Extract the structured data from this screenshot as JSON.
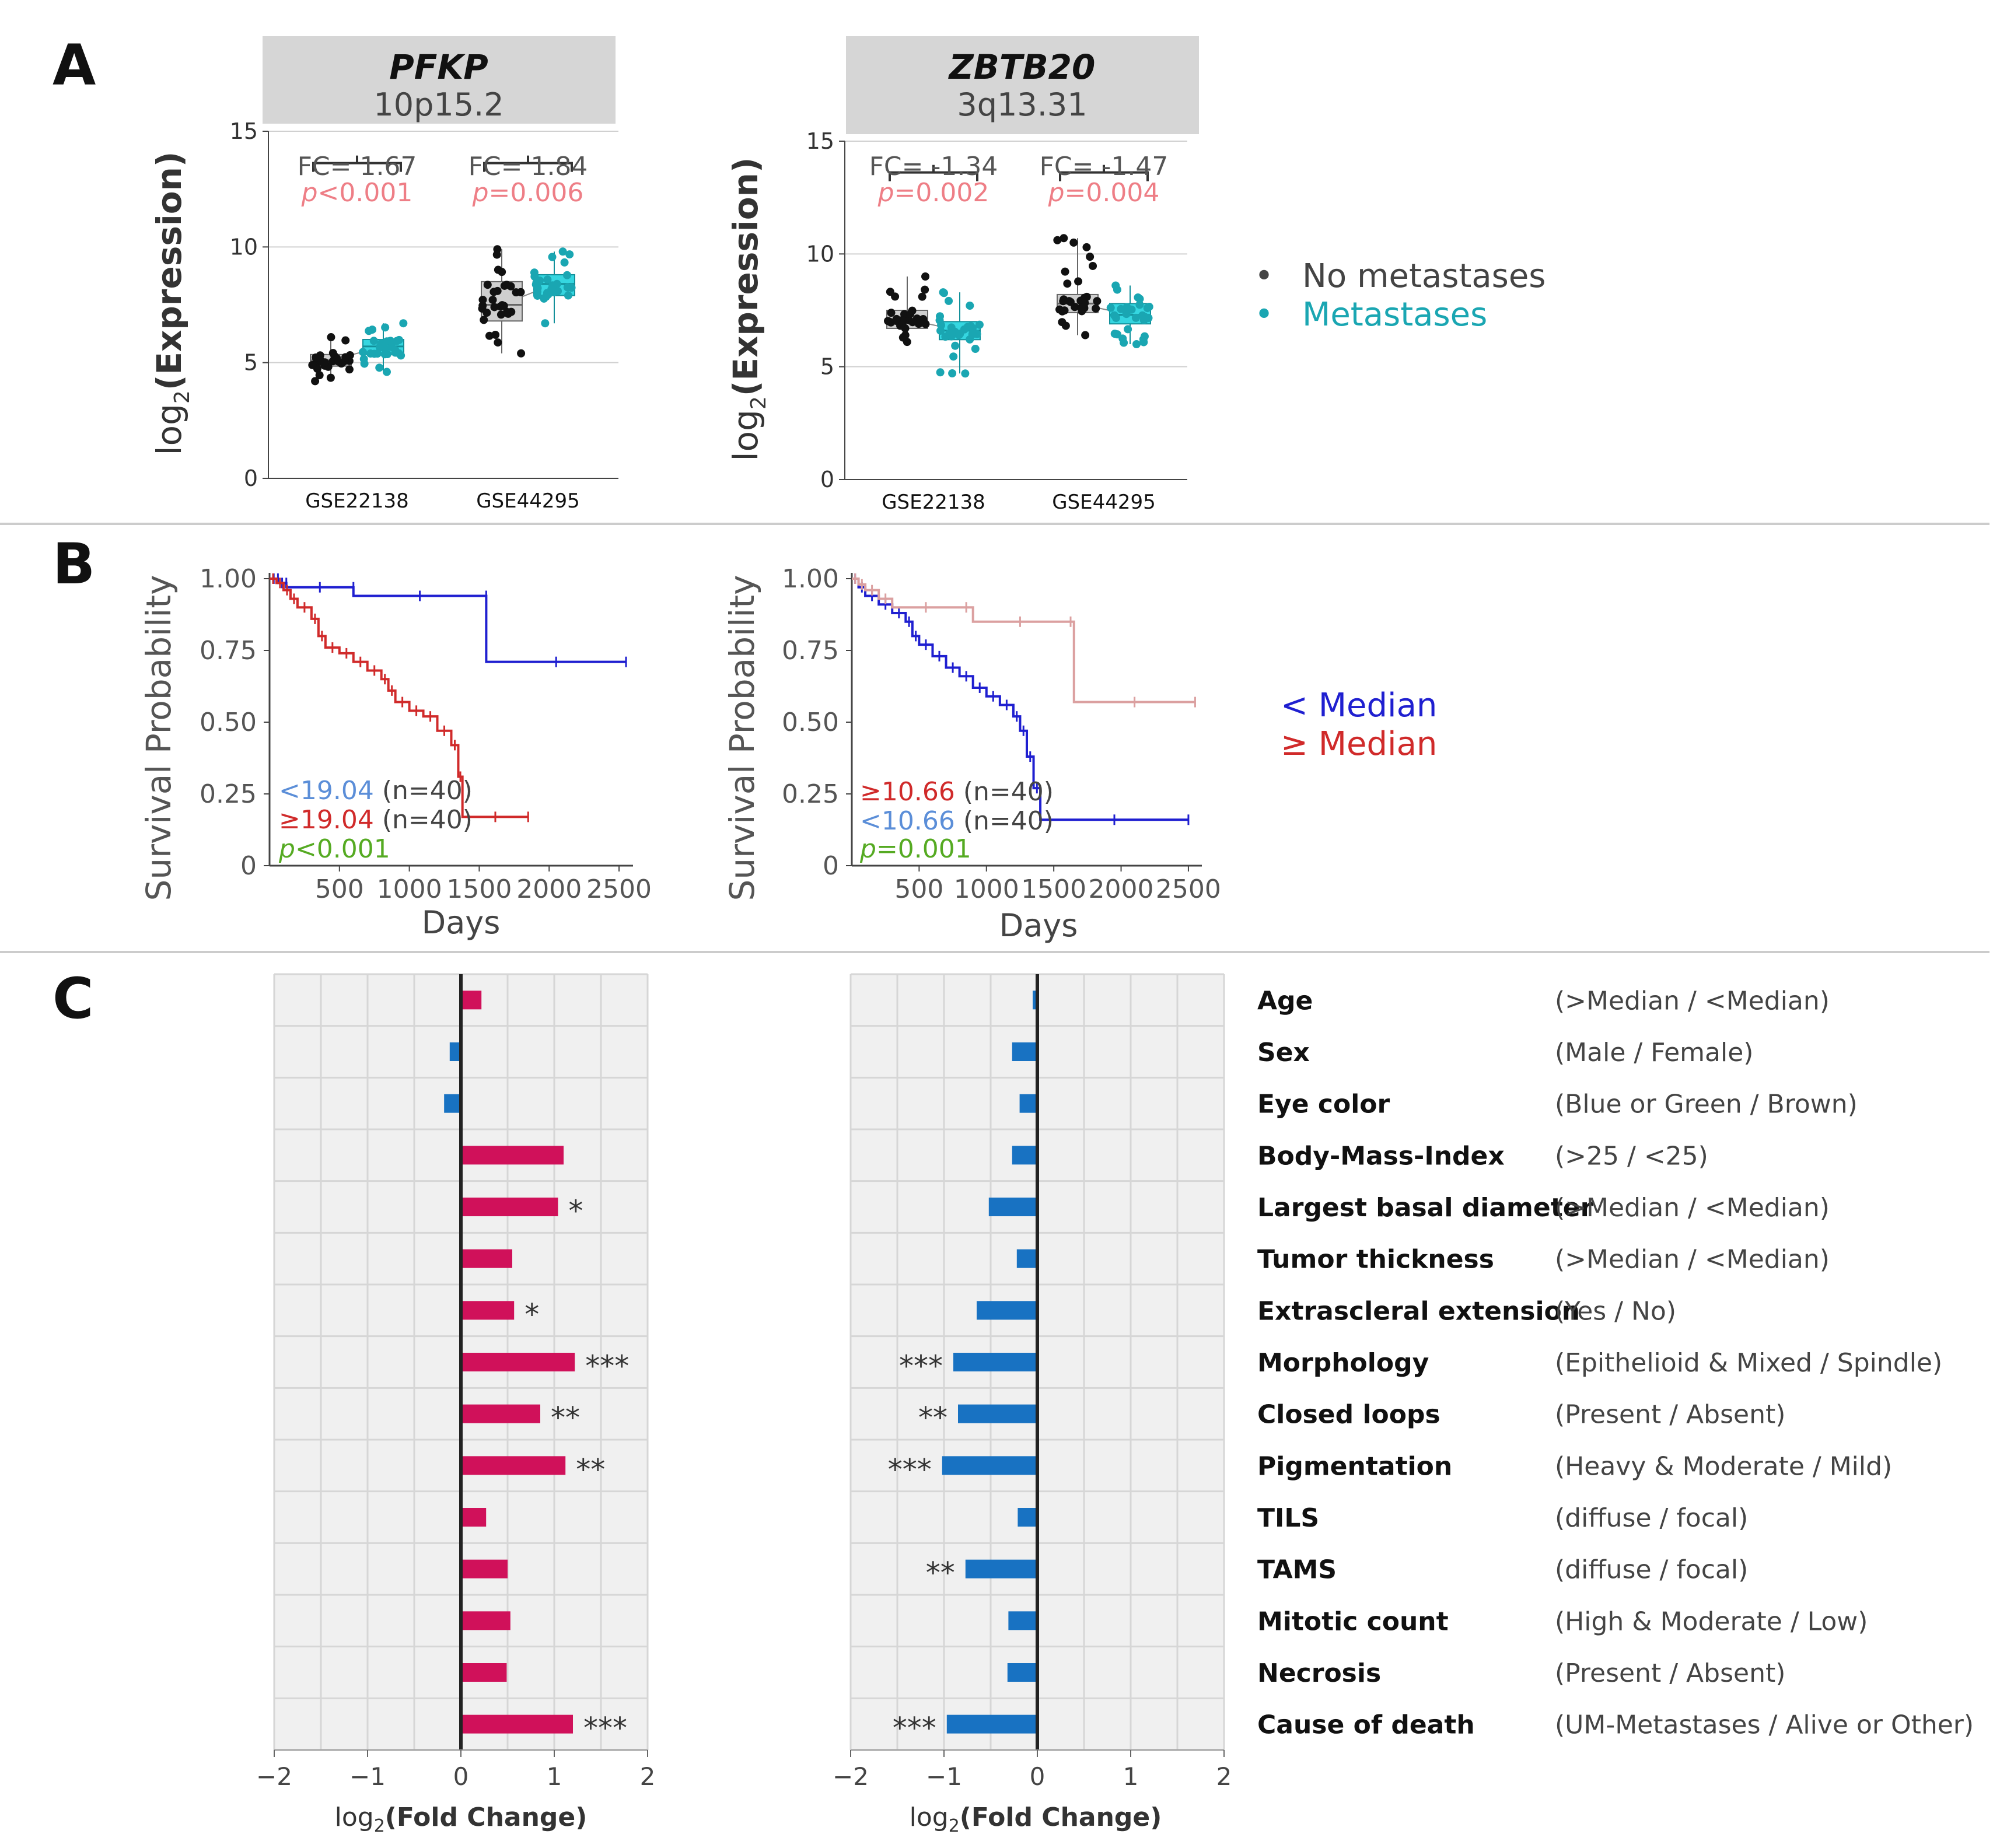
{
  "figure": {
    "panels": [
      "A",
      "B",
      "C"
    ],
    "colors": {
      "no_metastases": "#111111",
      "metastases": "#1aa6b2",
      "below_median": "#1f1fd0",
      "above_median_red": "#d02a2a",
      "above_median_pink": "#dba0a0",
      "positive_bar": "#d0115a",
      "negative_bar": "#1872c2",
      "pvalue_a": "#ee7e86",
      "pvalue_b": "#55aa22",
      "low_label": "#5b8ed8"
    }
  },
  "chart_data": [
    {
      "panel": "A",
      "type": "box",
      "gene": "PFKP",
      "locus": "10p15.2",
      "ylabel_prefix": "log",
      "ylabel_sub": "2",
      "ylabel_main": "(Expression)",
      "ylim": [
        0,
        15
      ],
      "yticks": [
        "0",
        "5",
        "10",
        "15"
      ],
      "categories": [
        "GSE22138",
        "GSE44295"
      ],
      "groups": [
        {
          "dataset": "GSE22138",
          "fc": "FC= 1.67",
          "p_prefix": "p",
          "p_rest": "<0.001",
          "no_metastases": {
            "q1": 4.85,
            "median": 5.1,
            "q3": 5.35,
            "min": 4.2,
            "max": 6.1
          },
          "metastases": {
            "q1": 5.35,
            "median": 5.7,
            "q3": 6.0,
            "min": 4.6,
            "max": 6.7
          }
        },
        {
          "dataset": "GSE44295",
          "fc": "FC= 1.84",
          "p_prefix": "p",
          "p_rest": "=0.006",
          "no_metastases": {
            "q1": 6.8,
            "median": 7.5,
            "q3": 8.5,
            "min": 5.4,
            "max": 9.9
          },
          "metastases": {
            "q1": 7.9,
            "median": 8.4,
            "q3": 8.8,
            "min": 6.7,
            "max": 9.8
          }
        }
      ]
    },
    {
      "panel": "A",
      "type": "box",
      "gene": "ZBTB20",
      "locus": "3q13.31",
      "ylabel_prefix": "log",
      "ylabel_sub": "2",
      "ylabel_main": "(Expression)",
      "ylim": [
        0,
        15
      ],
      "yticks": [
        "0",
        "5",
        "10",
        "15"
      ],
      "categories": [
        "GSE22138",
        "GSE44295"
      ],
      "groups": [
        {
          "dataset": "GSE22138",
          "fc": "FC= -1.34",
          "p_prefix": "p",
          "p_rest": "=0.002",
          "no_metastases": {
            "q1": 6.7,
            "median": 7.1,
            "q3": 7.5,
            "min": 6.1,
            "max": 9.0
          },
          "metastases": {
            "q1": 6.2,
            "median": 6.6,
            "q3": 7.0,
            "min": 4.7,
            "max": 8.3
          }
        },
        {
          "dataset": "GSE44295",
          "fc": "FC= -1.47",
          "p_prefix": "p",
          "p_rest": "=0.004",
          "no_metastases": {
            "q1": 7.4,
            "median": 7.8,
            "q3": 8.2,
            "min": 6.4,
            "max": 10.7
          },
          "metastases": {
            "q1": 6.9,
            "median": 7.3,
            "q3": 7.8,
            "min": 6.0,
            "max": 8.6
          }
        }
      ]
    },
    {
      "panel": "B",
      "type": "line",
      "ylabel": "Survival Probability",
      "xlabel": "Days",
      "xticks": [
        "500",
        "1000",
        "1500",
        "2000",
        "2500"
      ],
      "yticks": [
        "0",
        "0.25",
        "0.50",
        "0.75",
        "1.00"
      ],
      "xlim": [
        0,
        2600
      ],
      "ylim": [
        0,
        1
      ],
      "annotations": [
        {
          "label": "<19.04",
          "rest": " (n=40)",
          "color": "#5b8ed8"
        },
        {
          "label": "≥19.04",
          "rest": " (n=40)",
          "color": "#d02a2a"
        },
        {
          "label": "p",
          "rest": "<0.001",
          "color": "#55aa22"
        }
      ],
      "series": [
        {
          "name": "< Median",
          "color": "#1f1fd0",
          "x": [
            0,
            60,
            60,
            120,
            120,
            600,
            600,
            1550,
            1550,
            2550
          ],
          "y": [
            1.0,
            1.0,
            0.985,
            0.985,
            0.97,
            0.97,
            0.94,
            0.94,
            0.71,
            0.71
          ]
        },
        {
          "name": "≥ Median",
          "color": "#d02a2a",
          "x": [
            0,
            50,
            100,
            150,
            200,
            300,
            350,
            400,
            500,
            600,
            700,
            800,
            850,
            900,
            1000,
            1100,
            1200,
            1300,
            1350,
            1380,
            1850
          ],
          "y": [
            1.0,
            0.985,
            0.96,
            0.93,
            0.9,
            0.86,
            0.8,
            0.76,
            0.74,
            0.71,
            0.68,
            0.65,
            0.61,
            0.57,
            0.54,
            0.52,
            0.47,
            0.42,
            0.31,
            0.17,
            0.17
          ]
        }
      ]
    },
    {
      "panel": "B",
      "type": "line",
      "ylabel": "Survival Probability",
      "xlabel": "Days",
      "xticks": [
        "500",
        "1000",
        "1500",
        "2000",
        "2500"
      ],
      "yticks": [
        "0",
        "0.25",
        "0.50",
        "0.75",
        "1.00"
      ],
      "xlim": [
        0,
        2600
      ],
      "ylim": [
        0,
        1
      ],
      "annotations": [
        {
          "label": "≥10.66",
          "rest": " (n=40)",
          "color": "#d02a2a"
        },
        {
          "label": "<10.66",
          "rest": " (n=40)",
          "color": "#5b8ed8"
        },
        {
          "label": "p",
          "rest": "=0.001",
          "color": "#55aa22"
        }
      ],
      "series": [
        {
          "name": "< Median",
          "color": "#1f1fd0",
          "x": [
            0,
            50,
            100,
            200,
            300,
            400,
            450,
            500,
            600,
            700,
            800,
            900,
            1000,
            1100,
            1200,
            1250,
            1300,
            1350,
            1400,
            2500
          ],
          "y": [
            1.0,
            0.97,
            0.94,
            0.91,
            0.88,
            0.85,
            0.8,
            0.77,
            0.73,
            0.69,
            0.66,
            0.62,
            0.59,
            0.56,
            0.52,
            0.47,
            0.38,
            0.27,
            0.16,
            0.16
          ]
        },
        {
          "name": "≥ Median",
          "color": "#dba0a0",
          "x": [
            0,
            50,
            100,
            200,
            300,
            800,
            900,
            1600,
            1650,
            2550
          ],
          "y": [
            1.0,
            0.98,
            0.96,
            0.93,
            0.9,
            0.9,
            0.85,
            0.85,
            0.57,
            0.57
          ]
        }
      ]
    },
    {
      "panel": "C",
      "type": "bar",
      "orientation": "horizontal",
      "xlabel_prefix": "log",
      "xlabel_sub": "2",
      "xlabel_main": "(Fold Change)",
      "xlim": [
        -2,
        2
      ],
      "xticks": [
        "-2",
        "-1",
        "0",
        "1",
        "2"
      ],
      "categories": [
        "Age",
        "Sex",
        "Eye color",
        "Body-Mass-Index",
        "Largest basal diameter",
        "Tumor thickness",
        "Extrascleral extension",
        "Morphology",
        "Closed loops",
        "Pigmentation",
        "TILS",
        "TAMS",
        "Mitotic count",
        "Necrosis",
        "Cause of death"
      ],
      "values": [
        0.22,
        -0.12,
        -0.18,
        1.1,
        1.04,
        0.55,
        0.57,
        1.22,
        0.85,
        1.12,
        0.27,
        0.5,
        0.53,
        0.49,
        1.2
      ],
      "stars": [
        "",
        "",
        "",
        "",
        "*",
        "",
        "*",
        "***",
        "**",
        "**",
        "",
        "",
        "",
        "",
        "***"
      ]
    },
    {
      "panel": "C",
      "type": "bar",
      "orientation": "horizontal",
      "xlabel_prefix": "log",
      "xlabel_sub": "2",
      "xlabel_main": "(Fold Change)",
      "xlim": [
        -2,
        2
      ],
      "xticks": [
        "-2",
        "-1",
        "0",
        "1",
        "2"
      ],
      "categories": [
        "Age",
        "Sex",
        "Eye color",
        "Body-Mass-Index",
        "Largest basal diameter",
        "Tumor thickness",
        "Extrascleral extension",
        "Morphology",
        "Closed loops",
        "Pigmentation",
        "TILS",
        "TAMS",
        "Mitotic count",
        "Necrosis",
        "Cause of death"
      ],
      "values": [
        -0.05,
        -0.27,
        -0.19,
        -0.27,
        -0.52,
        -0.22,
        -0.65,
        -0.9,
        -0.85,
        -1.02,
        -0.21,
        -0.77,
        -0.31,
        -0.32,
        -0.97
      ],
      "stars": [
        "",
        "",
        "",
        "",
        "",
        "",
        "",
        "***",
        "**",
        "***",
        "",
        "**",
        "",
        "",
        "***"
      ]
    }
  ],
  "legend_a": [
    {
      "bullet": "•",
      "label": "No metastases",
      "color": "#444444"
    },
    {
      "bullet": "•",
      "label": "Metastases",
      "color": "#1aa6b2"
    }
  ],
  "legend_b": [
    {
      "label": "< Median",
      "color": "#1f1fd0"
    },
    {
      "label": "≥ Median",
      "color": "#d02a2a"
    }
  ],
  "comparisons": [
    "(>Median / <Median)",
    "(Male / Female)",
    "(Blue or Green / Brown)",
    "(>25 / <25)",
    "(>Median / <Median)",
    "(>Median / <Median)",
    "(Yes / No)",
    "(Epithelioid & Mixed / Spindle)",
    "(Present / Absent)",
    "(Heavy & Moderate / Mild)",
    "(diffuse / focal)",
    "(diffuse / focal)",
    "(High & Moderate / Low)",
    "(Present / Absent)",
    "(UM-Metastases / Alive or Other)"
  ]
}
